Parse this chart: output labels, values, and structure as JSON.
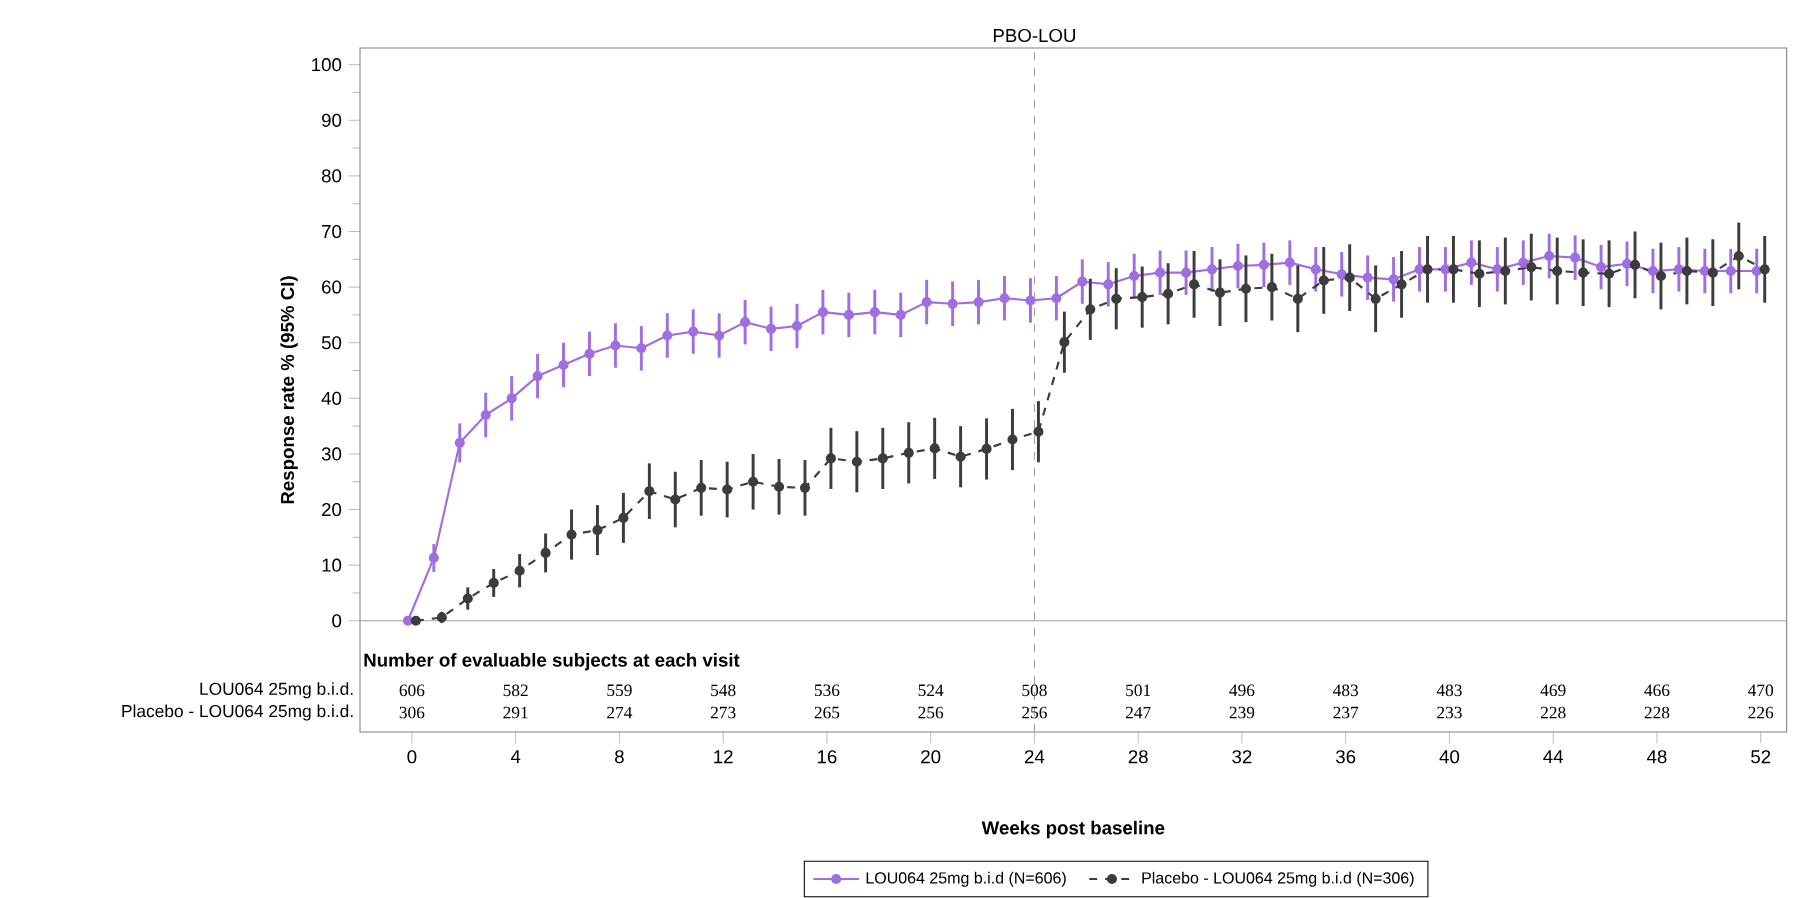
{
  "chart_data": {
    "type": "line",
    "xlabel": "Weeks post baseline",
    "ylabel": "Response rate % (95% CI)",
    "x": [
      0,
      1,
      2,
      3,
      4,
      5,
      6,
      7,
      8,
      9,
      10,
      11,
      12,
      13,
      14,
      15,
      16,
      17,
      18,
      19,
      20,
      21,
      22,
      23,
      24,
      25,
      26,
      27,
      28,
      29,
      30,
      31,
      32,
      33,
      34,
      35,
      36,
      37,
      38,
      39,
      40,
      41,
      42,
      43,
      44,
      45,
      46,
      47,
      48,
      49,
      50,
      51,
      52
    ],
    "xlim": [
      -2,
      53
    ],
    "xticks": [
      0,
      4,
      8,
      12,
      16,
      20,
      24,
      28,
      32,
      36,
      40,
      44,
      48,
      52
    ],
    "ylim": [
      -20,
      103
    ],
    "yticks": [
      0,
      10,
      20,
      30,
      40,
      50,
      60,
      70,
      80,
      90,
      100
    ],
    "marker": "circle",
    "legend": "bottom",
    "grid": false,
    "series": [
      {
        "name": "LOU064 25mg b.i.d (N=606)",
        "color": "#a06ee0",
        "line_style": "solid",
        "values": [
          0,
          11.3,
          32,
          37,
          40,
          44,
          46,
          48,
          49.5,
          49,
          51.3,
          52,
          51.3,
          53.7,
          52.5,
          53,
          55.5,
          55,
          55.5,
          55,
          57.3,
          57,
          57.3,
          58,
          57.6,
          58,
          61,
          60.5,
          62,
          62.6,
          62.6,
          63.2,
          63.8,
          64,
          64.4,
          63.2,
          62.3,
          61.7,
          61.4,
          63.2,
          63.2,
          64.4,
          63.2,
          64.4,
          65.6,
          65.3,
          63.6,
          64.2,
          62.9,
          63.2,
          62.9,
          62.9,
          62.9
        ],
        "errors": [
          null,
          2.5,
          3.5,
          4,
          4,
          4,
          4,
          4,
          4,
          4,
          4,
          4,
          4,
          4,
          4,
          4,
          4,
          4,
          4,
          4,
          4,
          4,
          4,
          4,
          4,
          4,
          4,
          4,
          4,
          4,
          4,
          4,
          4,
          4,
          4,
          4,
          4,
          4,
          4,
          4,
          4,
          4,
          4,
          4,
          4,
          4,
          4,
          4,
          4,
          4,
          4,
          4,
          4
        ]
      },
      {
        "name": "Placebo - LOU064 25mg b.i.d (N=306)",
        "color": "#3c3c3c",
        "line_style": "dashed",
        "values": [
          0,
          0.6,
          4,
          6.8,
          9,
          12.2,
          15.5,
          16.3,
          18.5,
          23.3,
          21.8,
          23.9,
          23.6,
          25,
          24.1,
          23.9,
          29.2,
          28.6,
          29.2,
          30.2,
          31,
          29.5,
          30.9,
          32.6,
          34,
          50.1,
          56,
          57.9,
          58.2,
          58.8,
          60.5,
          59,
          59.7,
          60,
          57.9,
          61.2,
          61.7,
          57.9,
          60.5,
          63.2,
          63.2,
          62.4,
          62.9,
          63.6,
          62.9,
          62.6,
          62.4,
          64,
          62,
          62.9,
          62.6,
          65.6,
          63.2
        ],
        "errors": [
          null,
          1,
          2,
          2.5,
          3,
          3.5,
          4.5,
          4.5,
          4.5,
          5,
          5,
          5,
          5,
          5,
          5,
          5,
          5.5,
          5.5,
          5.5,
          5.5,
          5.5,
          5.5,
          5.5,
          5.5,
          5.5,
          5.5,
          5.5,
          5.5,
          5.5,
          5.5,
          6,
          6,
          6,
          6,
          6,
          6,
          6,
          6,
          6,
          6,
          6,
          6,
          6,
          6,
          6,
          6,
          6,
          6,
          6,
          6,
          6,
          6,
          6
        ]
      }
    ],
    "ref_lines": [
      {
        "axis": "x",
        "value": 24,
        "label": "PBO-LOU",
        "color": "#a0a0a0",
        "line_style": "dashed"
      },
      {
        "axis": "y",
        "value": 0,
        "label": null,
        "color": "#a0a0a0",
        "line_style": "solid"
      }
    ],
    "annotations": [
      "Number of evaluable subjects at each visit",
      "LOU064 25mg b.i.d.",
      "606",
      "582",
      "559",
      "548",
      "536",
      "524",
      "508",
      "501",
      "496",
      "483",
      "483",
      "469",
      "466",
      "470",
      "Placebo - LOU064 25mg b.i.d.",
      "306",
      "291",
      "274",
      "273",
      "265",
      "256",
      "256",
      "247",
      "239",
      "237",
      "233",
      "228",
      "228",
      "226"
    ]
  }
}
